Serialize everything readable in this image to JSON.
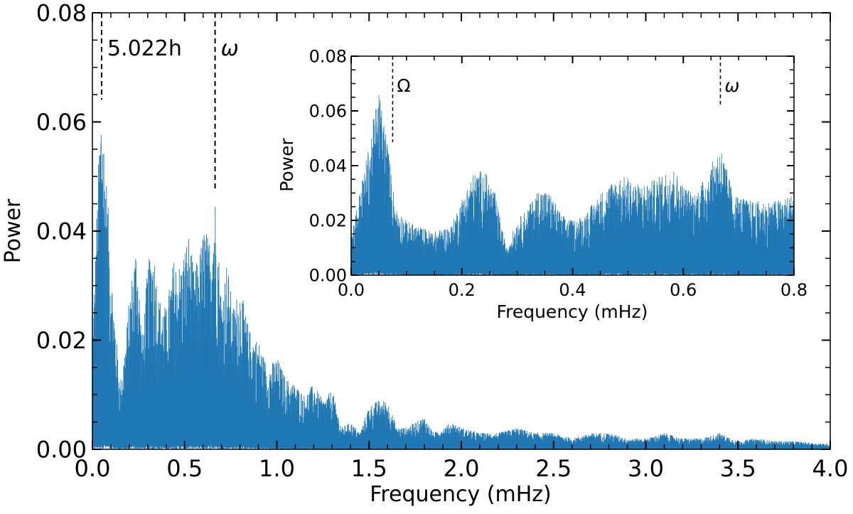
{
  "chart_data": [
    {
      "type": "line",
      "panel": "main",
      "xlabel": "Frequency (mHz)",
      "ylabel": "Power",
      "xlim": [
        0.0,
        4.0
      ],
      "ylim": [
        0.0,
        0.08
      ],
      "xticks": [
        "0.0",
        "0.5",
        "1.0",
        "1.5",
        "2.0",
        "2.5",
        "3.0",
        "3.5",
        "4.0"
      ],
      "yticks": [
        "0.00",
        "0.02",
        "0.04",
        "0.06",
        "0.08"
      ],
      "series_color": "#1f77b4",
      "envelope": {
        "x": [
          0.0,
          0.02,
          0.04,
          0.05,
          0.06,
          0.08,
          0.1,
          0.12,
          0.15,
          0.18,
          0.2,
          0.24,
          0.27,
          0.3,
          0.33,
          0.36,
          0.4,
          0.44,
          0.48,
          0.52,
          0.55,
          0.58,
          0.61,
          0.63,
          0.665,
          0.7,
          0.73,
          0.76,
          0.8,
          0.85,
          0.9,
          0.95,
          1.0,
          1.05,
          1.1,
          1.15,
          1.2,
          1.25,
          1.3,
          1.35,
          1.4,
          1.45,
          1.5,
          1.55,
          1.6,
          1.65,
          1.7,
          1.75,
          1.8,
          1.85,
          1.9,
          1.95,
          2.0,
          2.1,
          2.2,
          2.3,
          2.4,
          2.5,
          2.6,
          2.7,
          2.8,
          2.9,
          3.0,
          3.1,
          3.2,
          3.3,
          3.4,
          3.5,
          3.6,
          3.7,
          3.8,
          3.9,
          4.0
        ],
        "y": [
          0.02,
          0.04,
          0.06,
          0.068,
          0.06,
          0.048,
          0.035,
          0.025,
          0.012,
          0.02,
          0.028,
          0.039,
          0.02,
          0.034,
          0.038,
          0.028,
          0.026,
          0.035,
          0.034,
          0.04,
          0.033,
          0.036,
          0.042,
          0.038,
          0.047,
          0.028,
          0.035,
          0.026,
          0.03,
          0.022,
          0.02,
          0.015,
          0.017,
          0.013,
          0.012,
          0.01,
          0.012,
          0.009,
          0.011,
          0.004,
          0.005,
          0.003,
          0.008,
          0.009,
          0.009,
          0.004,
          0.004,
          0.005,
          0.006,
          0.003,
          0.004,
          0.005,
          0.004,
          0.003,
          0.003,
          0.004,
          0.003,
          0.003,
          0.002,
          0.003,
          0.003,
          0.002,
          0.002,
          0.003,
          0.002,
          0.002,
          0.003,
          0.0015,
          0.002,
          0.0015,
          0.0015,
          0.0012,
          0.001
        ]
      },
      "markers": [
        {
          "x": 0.05,
          "label": "5.022h"
        },
        {
          "x": 0.665,
          "label": "ω"
        }
      ]
    },
    {
      "type": "line",
      "panel": "inset",
      "xlabel": "Frequency (mHz)",
      "ylabel": "Power",
      "xlim": [
        0.0,
        0.8
      ],
      "ylim": [
        0.0,
        0.08
      ],
      "xticks": [
        "0.0",
        "0.2",
        "0.4",
        "0.6",
        "0.8"
      ],
      "yticks": [
        "0.00",
        "0.02",
        "0.04",
        "0.06",
        "0.08"
      ],
      "series_color": "#1f77b4",
      "envelope": {
        "x": [
          0.0,
          0.01,
          0.02,
          0.03,
          0.04,
          0.05,
          0.06,
          0.07,
          0.08,
          0.1,
          0.12,
          0.15,
          0.18,
          0.2,
          0.22,
          0.24,
          0.26,
          0.28,
          0.3,
          0.32,
          0.34,
          0.36,
          0.38,
          0.4,
          0.42,
          0.45,
          0.48,
          0.5,
          0.52,
          0.55,
          0.58,
          0.6,
          0.62,
          0.64,
          0.667,
          0.69,
          0.71,
          0.73,
          0.76,
          0.78,
          0.8
        ],
        "y": [
          0.015,
          0.025,
          0.035,
          0.045,
          0.057,
          0.068,
          0.057,
          0.042,
          0.025,
          0.02,
          0.018,
          0.016,
          0.018,
          0.028,
          0.037,
          0.039,
          0.03,
          0.01,
          0.02,
          0.025,
          0.032,
          0.03,
          0.022,
          0.02,
          0.022,
          0.03,
          0.036,
          0.036,
          0.033,
          0.035,
          0.04,
          0.033,
          0.03,
          0.036,
          0.048,
          0.03,
          0.028,
          0.027,
          0.027,
          0.028,
          0.03
        ]
      },
      "markers": [
        {
          "x": 0.075,
          "label": "Ω"
        },
        {
          "x": 0.667,
          "label": "ω"
        }
      ]
    }
  ]
}
